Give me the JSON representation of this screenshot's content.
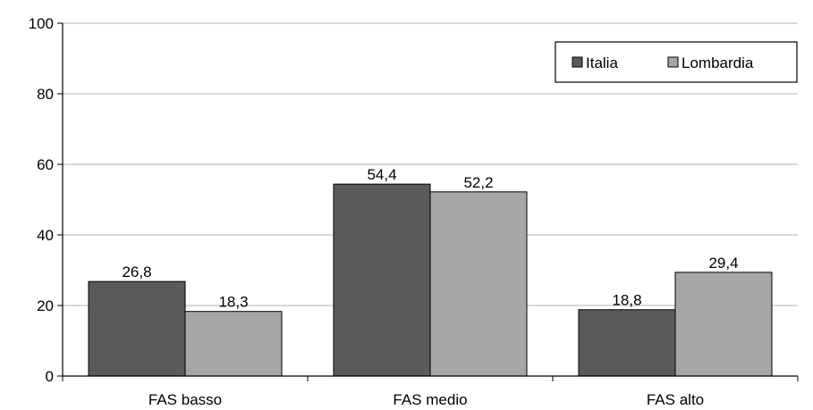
{
  "chart_data": {
    "type": "bar",
    "categories": [
      "FAS basso",
      "FAS medio",
      "FAS alto"
    ],
    "series": [
      {
        "name": "Italia",
        "values": [
          26.8,
          54.4,
          18.8
        ],
        "labels": [
          "26,8",
          "54,4",
          "18,8"
        ],
        "color": "#5a5a5a"
      },
      {
        "name": "Lombardia",
        "values": [
          18.3,
          52.2,
          29.4
        ],
        "labels": [
          "18,3",
          "52,2",
          "29,4"
        ],
        "color": "#a6a6a6"
      }
    ],
    "ylim": [
      0,
      100
    ],
    "yticks": [
      0,
      20,
      40,
      60,
      80,
      100
    ],
    "grid": true,
    "legend_position": "top-right",
    "title": "",
    "xlabel": "",
    "ylabel": ""
  }
}
